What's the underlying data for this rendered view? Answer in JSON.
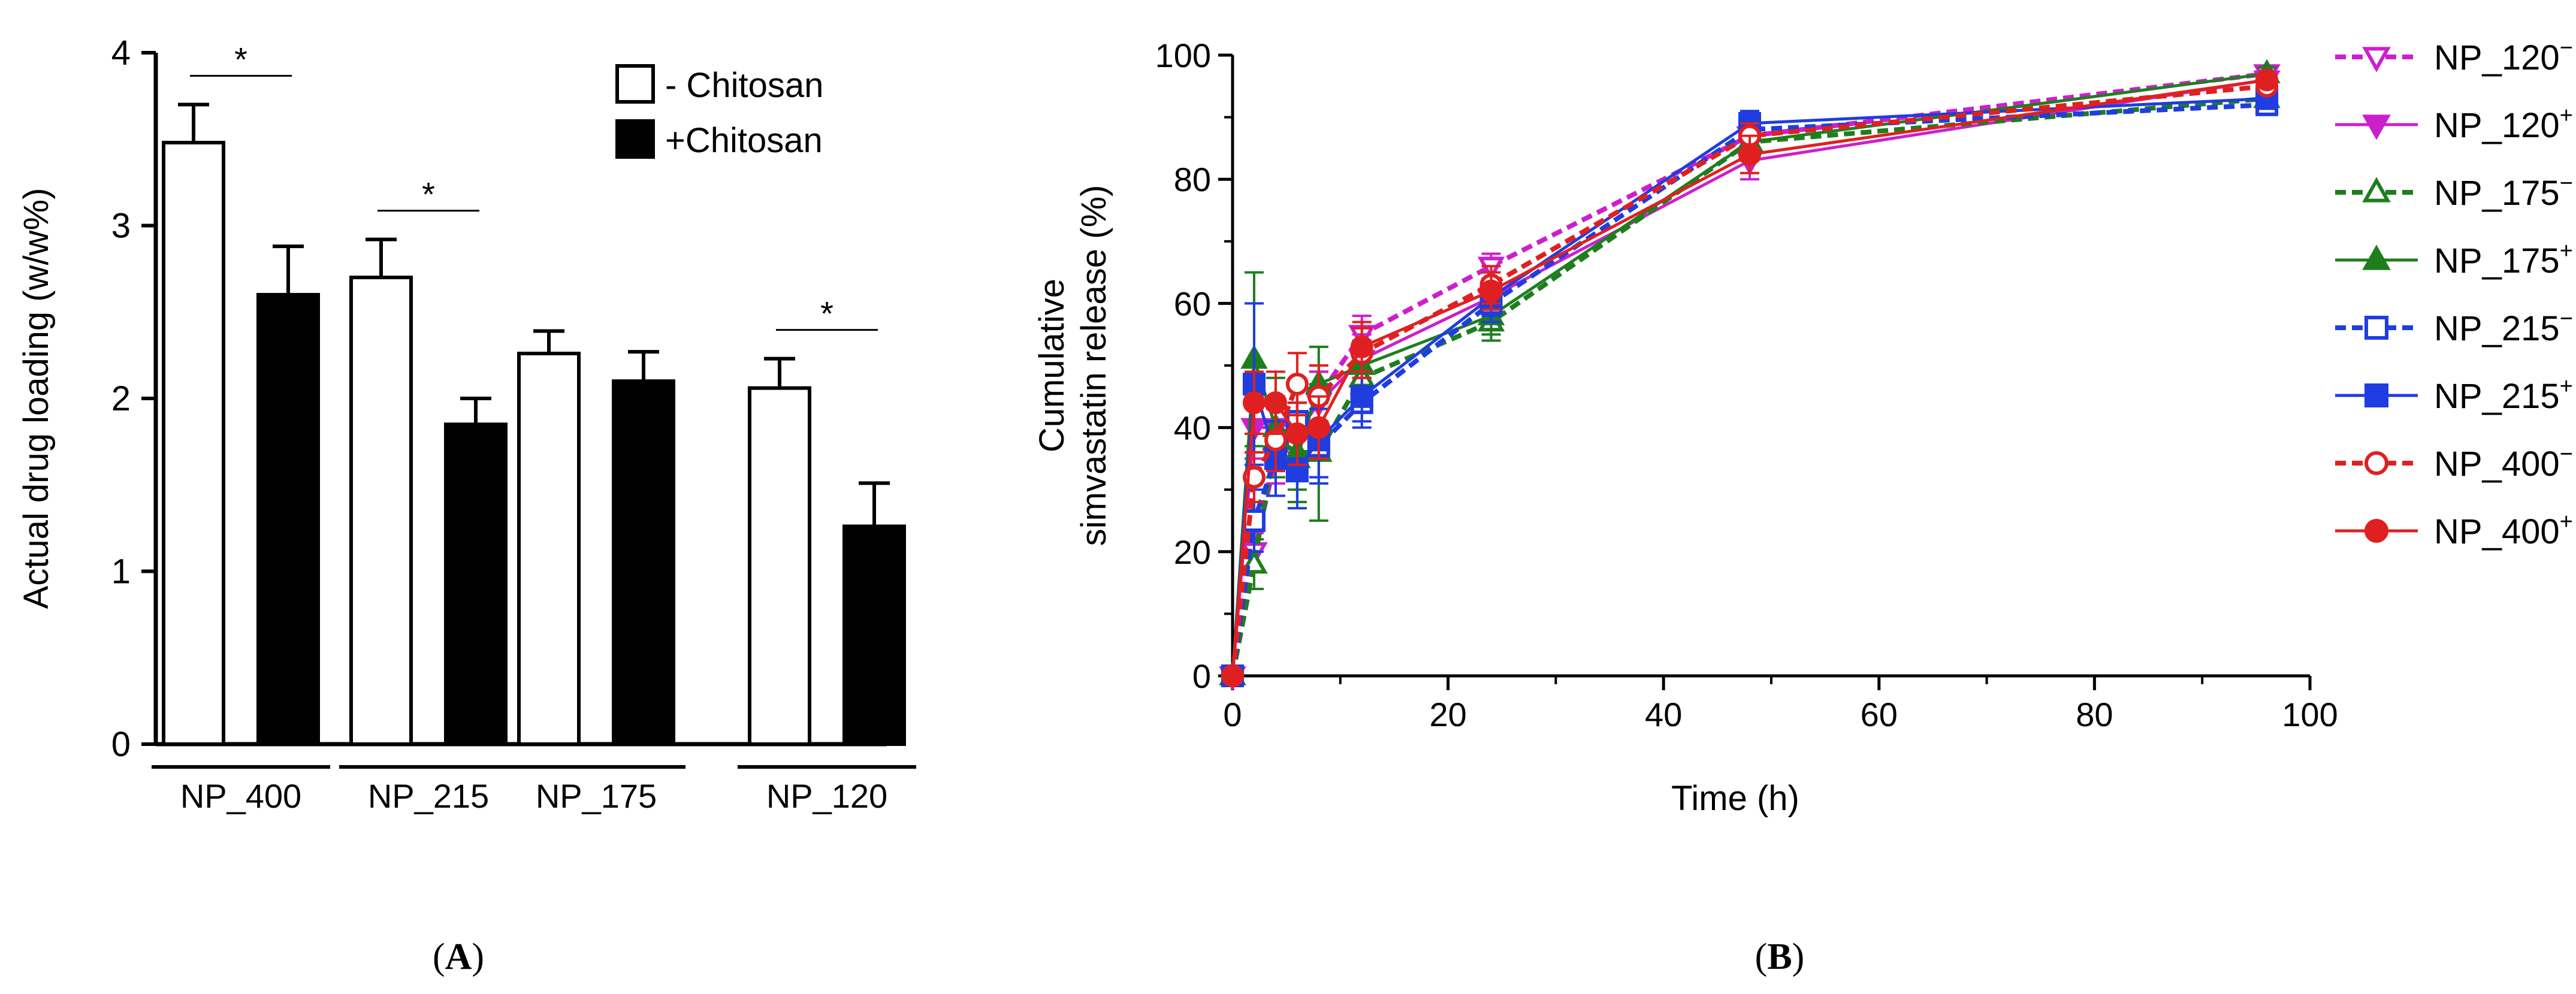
{
  "colors": {
    "NP_120": "#cc1fcc",
    "NP_175": "#1e7e1e",
    "NP_215": "#1f3de0",
    "NP_400": "#e02020",
    "bar_open": "#ffffff",
    "bar_filled": "#000000"
  },
  "panel_labels": {
    "a": "(A)",
    "b": "(B)",
    "a_letter": "A",
    "b_letter": "B"
  },
  "chart_data": [
    {
      "type": "bar",
      "ylabel": "Actual drug loading  (w/w%)",
      "ylim": [
        0,
        4
      ],
      "yticks": [
        0,
        1,
        2,
        3,
        4
      ],
      "categories": [
        "NP_400",
        "NP_215",
        "NP_175",
        "NP_120"
      ],
      "series": [
        {
          "name": "- Chitosan",
          "values": [
            3.48,
            2.7,
            2.26,
            2.06
          ],
          "errors": [
            0.22,
            0.22,
            0.13,
            0.17
          ]
        },
        {
          "name": "+Chitosan",
          "values": [
            2.6,
            1.85,
            2.1,
            1.26
          ],
          "errors": [
            0.28,
            0.15,
            0.17,
            0.25
          ]
        }
      ],
      "significance": [
        "*",
        "*",
        "",
        "*"
      ],
      "legend": "top-right"
    },
    {
      "type": "line",
      "xlabel": "Time (h)",
      "ylabel_lines": [
        "Cumulative",
        "simvastatin release (%)"
      ],
      "xlim": [
        0,
        100
      ],
      "ylim": [
        0,
        100
      ],
      "xticks": [
        0,
        20,
        40,
        60,
        80,
        100
      ],
      "yticks": [
        0,
        20,
        40,
        60,
        80,
        100
      ],
      "x": [
        0,
        2,
        4,
        6,
        8,
        12,
        24,
        48,
        96
      ],
      "series": [
        {
          "name": "NP_120",
          "sup": "−",
          "group": "NP_120",
          "marker": "triangle-down",
          "filled": false,
          "dashed": true,
          "values": [
            0,
            20,
            35,
            40,
            45,
            55,
            66,
            87,
            97
          ],
          "errors": [
            0,
            3,
            4,
            4,
            4,
            3,
            2,
            2,
            1
          ]
        },
        {
          "name": "NP_120",
          "sup": "+",
          "group": "NP_120",
          "marker": "triangle-down",
          "filled": true,
          "dashed": false,
          "values": [
            0,
            40,
            40,
            39,
            44,
            51,
            61,
            83,
            96
          ],
          "errors": [
            0,
            5,
            5,
            5,
            5,
            4,
            3,
            3,
            1
          ]
        },
        {
          "name": "NP_175",
          "sup": "−",
          "group": "NP_175",
          "marker": "triangle-up",
          "filled": false,
          "dashed": true,
          "values": [
            0,
            18,
            38,
            36,
            36,
            48,
            57,
            86,
            93
          ],
          "errors": [
            0,
            4,
            6,
            8,
            11,
            5,
            3,
            3,
            1
          ]
        },
        {
          "name": "NP_175",
          "sup": "+",
          "group": "NP_175",
          "marker": "triangle-up",
          "filled": true,
          "dashed": false,
          "values": [
            0,
            51,
            40,
            35,
            47,
            50,
            58,
            86,
            97
          ],
          "errors": [
            0,
            14,
            8,
            5,
            6,
            4,
            3,
            3,
            1
          ]
        },
        {
          "name": "NP_215",
          "sup": "−",
          "group": "NP_215",
          "marker": "square",
          "filled": false,
          "dashed": true,
          "values": [
            0,
            25,
            35,
            41,
            37,
            44,
            60,
            88,
            92
          ],
          "errors": [
            0,
            5,
            6,
            6,
            6,
            4,
            3,
            2,
            1
          ]
        },
        {
          "name": "NP_215",
          "sup": "+",
          "group": "NP_215",
          "marker": "square",
          "filled": true,
          "dashed": false,
          "values": [
            0,
            47,
            35,
            33,
            38,
            45,
            61,
            89,
            93
          ],
          "errors": [
            0,
            13,
            6,
            6,
            6,
            4,
            3,
            2,
            1
          ]
        },
        {
          "name": "NP_400",
          "sup": "−",
          "group": "NP_400",
          "marker": "circle",
          "filled": false,
          "dashed": true,
          "values": [
            0,
            32,
            38,
            47,
            45,
            52,
            63,
            87,
            95
          ],
          "errors": [
            0,
            4,
            5,
            5,
            5,
            4,
            3,
            2,
            1
          ]
        },
        {
          "name": "NP_400",
          "sup": "+",
          "group": "NP_400",
          "marker": "circle",
          "filled": true,
          "dashed": false,
          "values": [
            0,
            44,
            44,
            39,
            40,
            53,
            62,
            84,
            96
          ],
          "errors": [
            0,
            5,
            5,
            5,
            5,
            4,
            3,
            3,
            1
          ]
        }
      ],
      "legend": "right"
    }
  ]
}
